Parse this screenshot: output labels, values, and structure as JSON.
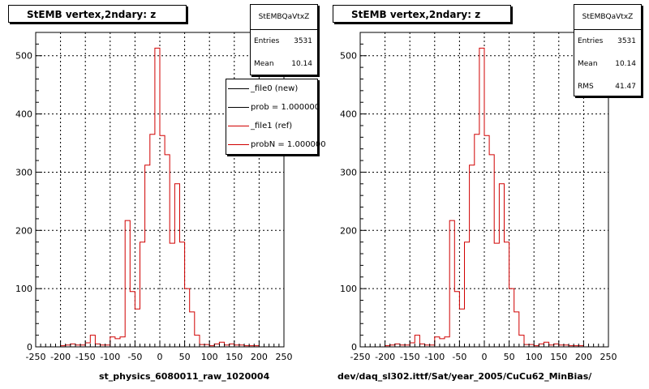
{
  "left_panel": {
    "title": "StEMB  vertex,2ndary: z",
    "stats": {
      "name": "StEMBQaVtxZ",
      "rows": [
        {
          "label": "Entries",
          "value": "3531"
        },
        {
          "label": "Mean",
          "value": "10.14"
        }
      ]
    },
    "legend": [
      {
        "label": "_file0 (new)",
        "color": "#000000"
      },
      {
        "label": "prob = 1.000000",
        "color": "#000000"
      },
      {
        "label": "_file1 (ref)",
        "color": "#d00000"
      },
      {
        "label": "probN = 1.000000",
        "color": "#d00000"
      }
    ],
    "xlabel": "st_physics_6080011_raw_1020004"
  },
  "right_panel": {
    "title": "StEMB  vertex,2ndary: z",
    "stats": {
      "name": "StEMBQaVtxZ",
      "rows": [
        {
          "label": "Entries",
          "value": "3531"
        },
        {
          "label": "Mean",
          "value": "10.14"
        },
        {
          "label": "RMS",
          "value": "41.47"
        }
      ]
    },
    "xlabel": "dev/daq_sl302.ittf/Sat/year_2005/CuCu62_MinBias/"
  },
  "chart_data": {
    "type": "bar",
    "title": "StEMB  vertex,2ndary: z",
    "xlim": [
      -250,
      250
    ],
    "ylim": [
      0,
      540
    ],
    "x_ticks": [
      -250,
      -200,
      -150,
      -100,
      -50,
      0,
      50,
      100,
      150,
      200,
      250
    ],
    "y_ticks": [
      0,
      100,
      200,
      300,
      400,
      500
    ],
    "grid": true,
    "bin_edges_start": -200,
    "bin_width": 10,
    "series": [
      {
        "name": "_file1 (ref)",
        "color": "#d00000",
        "values": [
          2,
          3,
          5,
          3,
          3,
          7,
          20,
          5,
          3,
          3,
          17,
          14,
          17,
          217,
          95,
          65,
          180,
          312,
          365,
          513,
          363,
          330,
          178,
          280,
          180,
          100,
          60,
          20,
          4,
          4,
          2,
          5,
          8,
          3,
          5,
          3,
          3,
          2,
          2,
          2
        ]
      }
    ]
  }
}
